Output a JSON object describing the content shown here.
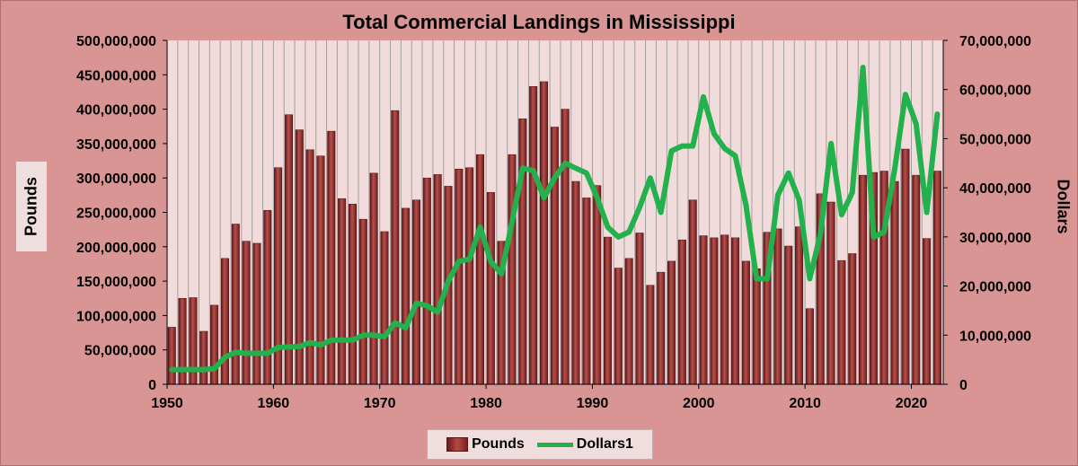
{
  "chart_data": {
    "type": "bar+line",
    "title": "Total Commercial Landings in Mississippi",
    "ylabel_left": "Pounds",
    "ylabel_right": "Dollars",
    "xlabel": "",
    "x_ticks": [
      1950,
      1960,
      1970,
      1980,
      1990,
      2000,
      2010,
      2020
    ],
    "y_left_ticks": [
      "0",
      "50,000,000",
      "100,000,000",
      "150,000,000",
      "200,000,000",
      "250,000,000",
      "300,000,000",
      "350,000,000",
      "400,000,000",
      "450,000,000",
      "500,000,000"
    ],
    "y_right_ticks": [
      "0",
      "10,000,000",
      "20,000,000",
      "30,000,000",
      "40,000,000",
      "50,000,000",
      "60,000,000",
      "70,000,000"
    ],
    "ylim_left": [
      0,
      500000000
    ],
    "ylim_right": [
      0,
      70000000
    ],
    "xlim": [
      1950,
      2023
    ],
    "grid": "vertical",
    "legend_position": "bottom",
    "years": [
      1950,
      1951,
      1952,
      1953,
      1954,
      1955,
      1956,
      1957,
      1958,
      1959,
      1960,
      1961,
      1962,
      1963,
      1964,
      1965,
      1966,
      1967,
      1968,
      1969,
      1970,
      1971,
      1972,
      1973,
      1974,
      1975,
      1976,
      1977,
      1978,
      1979,
      1980,
      1981,
      1982,
      1983,
      1984,
      1985,
      1986,
      1987,
      1988,
      1989,
      1990,
      1991,
      1992,
      1993,
      1994,
      1995,
      1996,
      1997,
      1998,
      1999,
      2000,
      2001,
      2002,
      2003,
      2004,
      2005,
      2006,
      2007,
      2008,
      2009,
      2010,
      2011,
      2012,
      2013,
      2014,
      2015,
      2016,
      2017,
      2018,
      2019,
      2020,
      2021,
      2022
    ],
    "series": [
      {
        "name": "Pounds",
        "type": "bar",
        "axis": "left",
        "color": "#8b2a2a",
        "values": [
          83000000,
          125000000,
          126000000,
          77000000,
          115000000,
          183000000,
          233000000,
          208000000,
          205000000,
          253000000,
          315000000,
          392000000,
          370000000,
          341000000,
          332000000,
          368000000,
          270000000,
          262000000,
          240000000,
          307000000,
          222000000,
          398000000,
          256000000,
          268000000,
          300000000,
          305000000,
          288000000,
          313000000,
          315000000,
          334000000,
          279000000,
          208000000,
          334000000,
          386000000,
          433000000,
          440000000,
          374000000,
          400000000,
          295000000,
          271000000,
          289000000,
          214000000,
          169000000,
          183000000,
          220000000,
          144000000,
          163000000,
          179000000,
          210000000,
          268000000,
          216000000,
          213000000,
          217000000,
          213000000,
          179000000,
          168000000,
          221000000,
          226000000,
          201000000,
          229000000,
          110000000,
          277000000,
          265000000,
          180000000,
          190000000,
          304000000,
          308000000,
          310000000,
          295000000,
          342000000,
          304000000,
          212000000,
          310000000
        ]
      },
      {
        "name": "Dollars1",
        "type": "line",
        "axis": "right",
        "color": "#22b14c",
        "values": [
          3000000,
          3000000,
          3000000,
          3000000,
          3200000,
          5500000,
          6500000,
          6300000,
          6300000,
          6300000,
          7500000,
          7600000,
          7700000,
          8500000,
          8000000,
          9000000,
          9000000,
          9000000,
          10000000,
          10000000,
          9700000,
          12500000,
          11500000,
          16500000,
          16000000,
          14700000,
          21000000,
          25000000,
          25500000,
          32000000,
          25000000,
          22500000,
          33000000,
          44000000,
          43500000,
          38000000,
          42000000,
          45000000,
          44000000,
          43000000,
          38000000,
          32000000,
          30000000,
          31000000,
          36000000,
          42000000,
          35000000,
          47500000,
          48500000,
          48500000,
          58500000,
          51000000,
          48000000,
          46500000,
          36500000,
          21500000,
          21500000,
          38500000,
          43000000,
          37500000,
          21500000,
          30500000,
          49000000,
          34500000,
          39000000,
          64500000,
          30000000,
          31000000,
          44000000,
          59000000,
          53000000,
          35000000,
          55000000
        ]
      }
    ]
  },
  "legend": {
    "pounds_label": "Pounds",
    "dollars_label": "Dollars1"
  }
}
